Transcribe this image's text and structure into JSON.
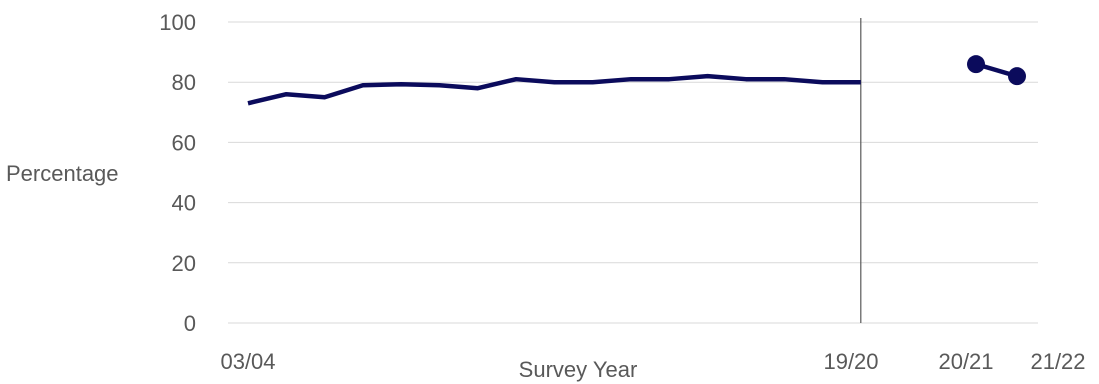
{
  "chart_data": {
    "type": "line",
    "title": "",
    "xlabel": "Survey Year",
    "ylabel": "Percentage",
    "ylim": [
      0,
      100
    ],
    "yticks": [
      0,
      20,
      40,
      60,
      80,
      100
    ],
    "grid": true,
    "x_tick_labels": [
      "03/04",
      "19/20",
      "20/21",
      "21/22"
    ],
    "series": [
      {
        "x": [
          "03/04",
          "04/05",
          "05/06",
          "06/07",
          "07/08",
          "08/09",
          "09/10",
          "10/11",
          "11/12",
          "12/13",
          "13/14",
          "14/15",
          "15/16",
          "16/17",
          "17/18",
          "18/19",
          "19/20"
        ],
        "values": [
          73,
          76,
          75,
          79,
          79.3,
          79,
          78,
          81,
          80,
          80,
          81,
          81,
          82,
          81,
          81,
          80,
          80
        ],
        "color": "#0b0b5c",
        "markers": false
      },
      {
        "x": [
          "20/21",
          "21/22"
        ],
        "values": [
          86,
          82
        ],
        "color": "#0b0b5c",
        "markers": true
      }
    ],
    "break_line_at": "19/20",
    "break_line_color": "#595959"
  }
}
